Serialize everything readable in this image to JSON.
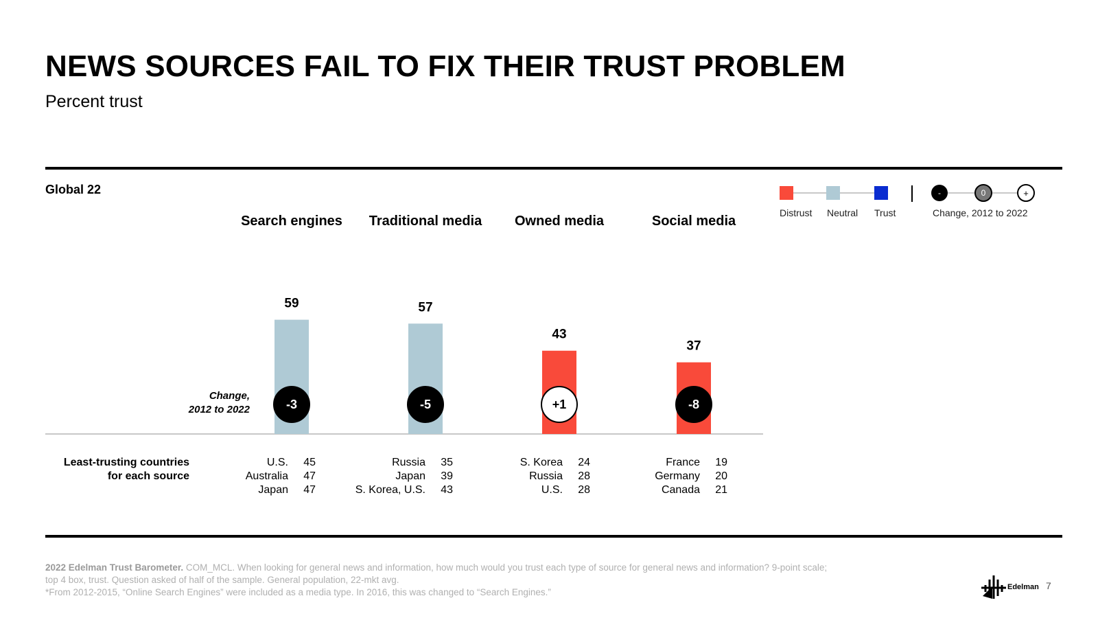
{
  "title": "NEWS SOURCES FAIL TO FIX THEIR TRUST  PROBLEM",
  "subtitle": "Percent trust",
  "group_label": "Global 22",
  "legend": {
    "distrust": "Distrust",
    "neutral": "Neutral",
    "trust": "Trust",
    "change_minus": "-",
    "change_zero": "0",
    "change_plus": "+",
    "change_label": "Change, 2012 to 2022"
  },
  "colors": {
    "distrust": "#F94A3A",
    "neutral": "#AFCAD5",
    "trust": "#0A2CD0",
    "change_circle": "#000000"
  },
  "change_side_label": [
    "Change,",
    "2012 to 2022"
  ],
  "least_trusting_label": [
    "Least-trusting countries",
    "for each source"
  ],
  "chart_data": {
    "type": "bar",
    "categories": [
      "Search engines",
      "Traditional media",
      "Owned media",
      "Social media"
    ],
    "values": [
      59,
      57,
      43,
      37
    ],
    "trust_level": [
      "Neutral",
      "Neutral",
      "Distrust",
      "Distrust"
    ],
    "change_2012_to_2022": [
      "-3",
      "-5",
      "+1",
      "-8"
    ],
    "ylim": [
      0,
      100
    ],
    "least_trusting_countries": [
      [
        {
          "country": "U.S.",
          "value": 45
        },
        {
          "country": "Australia",
          "value": 47
        },
        {
          "country": "Japan",
          "value": 47
        }
      ],
      [
        {
          "country": "Russia",
          "value": 35
        },
        {
          "country": "Japan",
          "value": 39
        },
        {
          "country": "S. Korea, U.S.",
          "value": 43
        }
      ],
      [
        {
          "country": "S. Korea",
          "value": 24
        },
        {
          "country": "Russia",
          "value": 28
        },
        {
          "country": "U.S.",
          "value": 28
        }
      ],
      [
        {
          "country": "France",
          "value": 19
        },
        {
          "country": "Germany",
          "value": 20
        },
        {
          "country": "Canada",
          "value": 21
        }
      ]
    ]
  },
  "footer": {
    "bold": "2022 Edelman Trust Barometer.",
    "line1": " COM_MCL. When looking for general news and information, how much would you trust each type of source for general news and information? 9-point scale;",
    "line2": "top 4 box, trust. Question asked of half of the sample. General population, 22-mkt avg.",
    "line3": "*From 2012-2015, “Online Search Engines” were included as a media type. In 2016, this was changed to “Search Engines.”"
  },
  "brand": "Edelman",
  "page_number": "7"
}
